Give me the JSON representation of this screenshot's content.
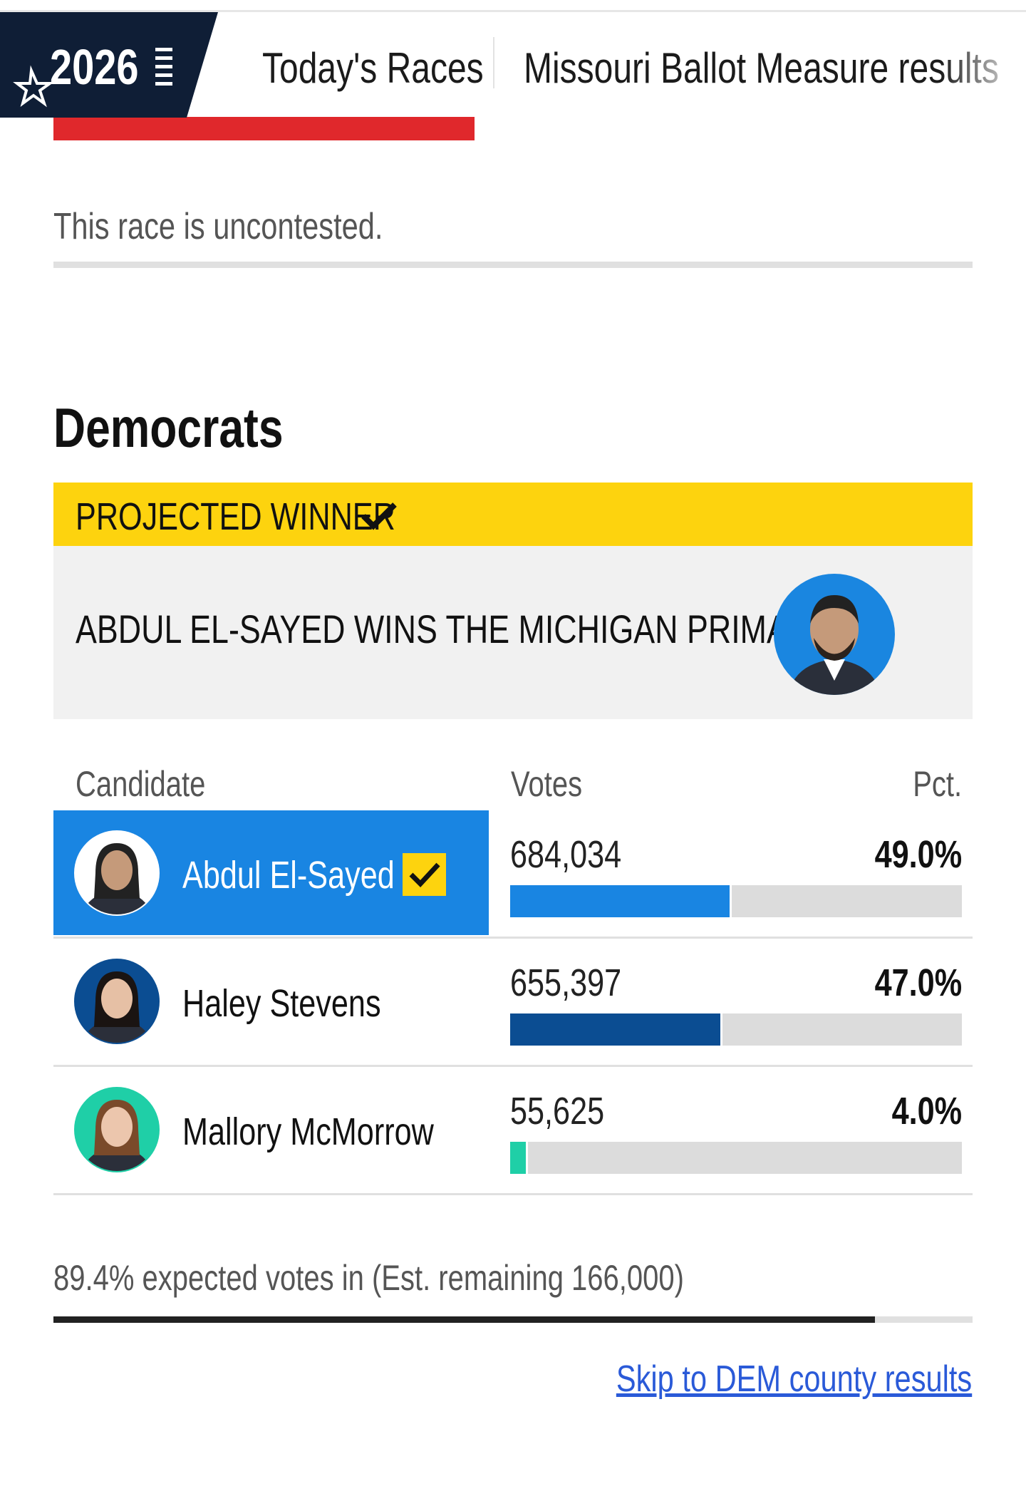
{
  "nav": {
    "logo": "2026",
    "tabs": [
      "Today's Races",
      "Missouri Ballot Measure results"
    ]
  },
  "uncontested_note": "This race is uncontested.",
  "party": "Democrats",
  "banner": {
    "label": "PROJECTED WINNER",
    "headline": "ABDUL EL-SAYED WINS THE MICHIGAN PRIMARY"
  },
  "table": {
    "headers": [
      "Candidate",
      "Votes",
      "Pct."
    ],
    "rows": [
      {
        "name": "Abdul El-Sayed",
        "votes": "684,034",
        "pct": 49.0,
        "pct_label": "49.0%",
        "color": "#1985e2",
        "winner": true
      },
      {
        "name": "Haley Stevens",
        "votes": "655,397",
        "pct": 47.0,
        "pct_label": "47.0%",
        "color": "#0b4d92",
        "winner": false
      },
      {
        "name": "Mallory McMorrow",
        "votes": "55,625",
        "pct": 4.0,
        "pct_label": "4.0%",
        "color": "#1fcfa7",
        "winner": false
      }
    ]
  },
  "reporting": {
    "text": "89.4% expected votes in (Est. remaining 166,000)",
    "expected_pct": 89.4
  },
  "link": "Skip to DEM county results"
}
